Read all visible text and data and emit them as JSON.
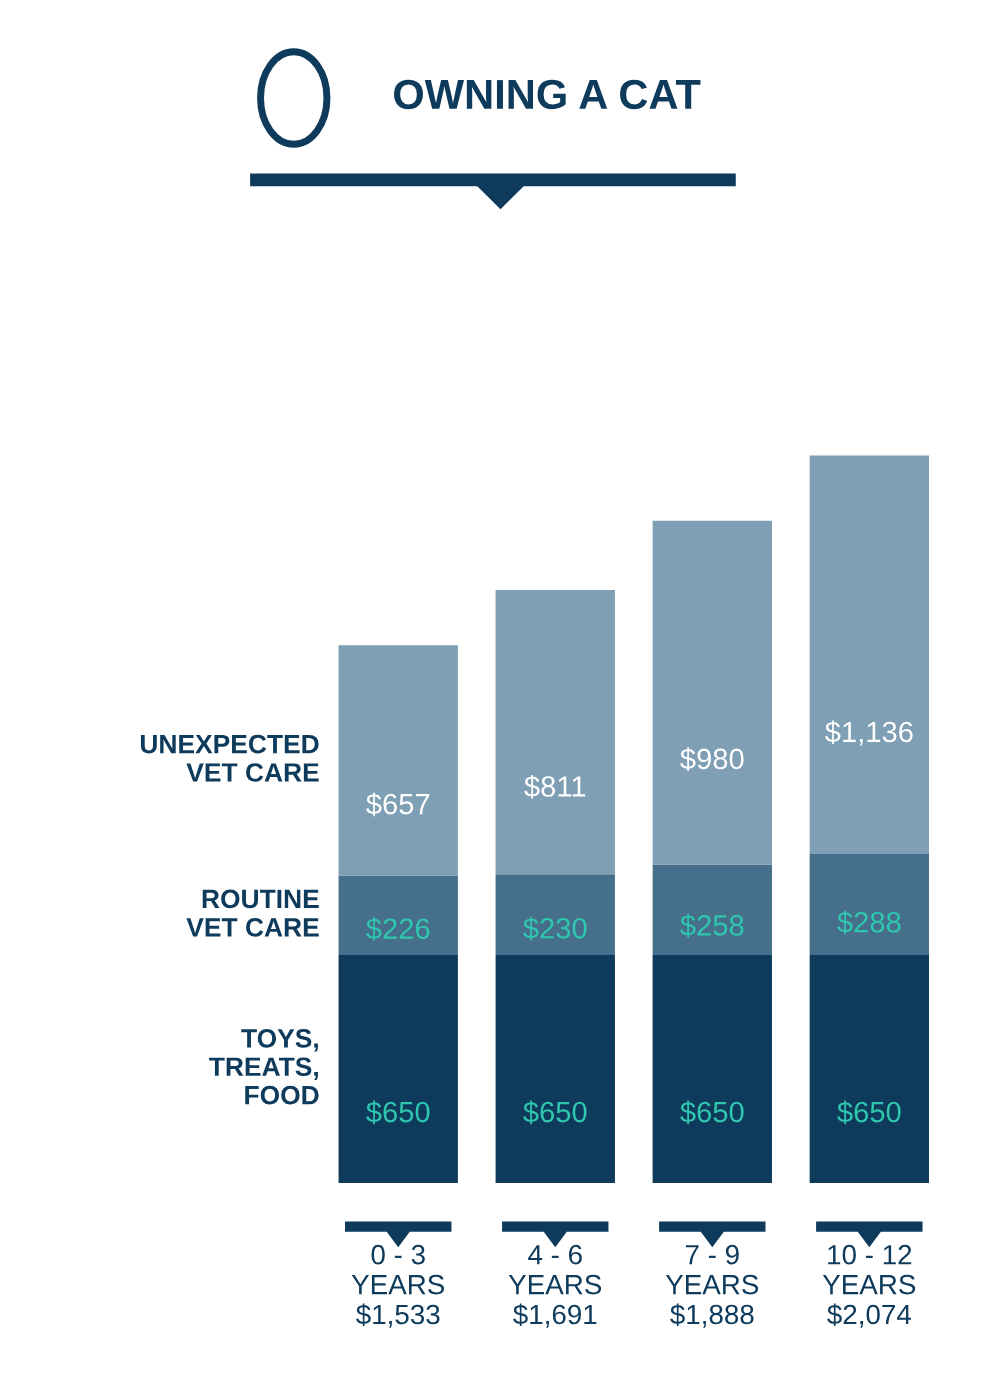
{
  "chart_data": {
    "type": "bar",
    "title": "OWNING A CAT",
    "stacked": true,
    "categories": [
      "0 - 3\nYEARS\n$1,533",
      "4 - 6\nYEARS\n$1,691",
      "7 - 9\nYEARS\n$1,888",
      "10 - 12\nYEARS\n$2,074"
    ],
    "series": [
      {
        "name": "TOYS,\nTREATS,\nFOOD",
        "color": "#0e3b5c",
        "values": [
          650,
          650,
          650,
          650
        ],
        "value_labels": [
          "$650",
          "$650",
          "$650",
          "$650"
        ]
      },
      {
        "name": "ROUTINE\nVET CARE",
        "color": "#466f8b",
        "values": [
          226,
          230,
          258,
          288
        ],
        "value_labels": [
          "$226",
          "$230",
          "$258",
          "$288"
        ]
      },
      {
        "name": "UNEXPECTED\nVET CARE",
        "color": "#7f9fb4",
        "values": [
          657,
          811,
          980,
          1136
        ],
        "value_labels": [
          "$657",
          "$811",
          "$980",
          "$1,136"
        ]
      }
    ],
    "legend": "left",
    "grid": false
  }
}
